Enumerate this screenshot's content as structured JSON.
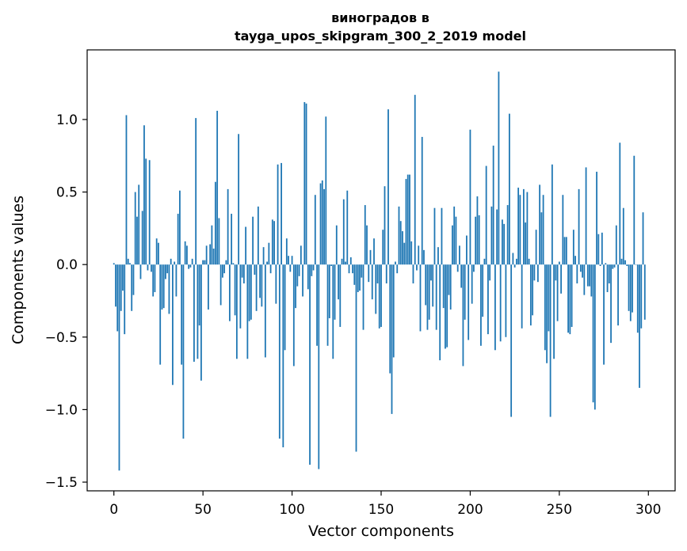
{
  "chart_data": {
    "type": "bar",
    "title_lines": [
      "виноградов в",
      "tayga_upos_skipgram_300_2_2019 model"
    ],
    "xlabel": "Vector components",
    "ylabel": "Components values",
    "x_range": [
      -15,
      315
    ],
    "ylim": [
      -1.56,
      1.48
    ],
    "xticks": [
      0,
      50,
      100,
      150,
      200,
      250,
      300
    ],
    "xtick_labels": [
      "0",
      "50",
      "100",
      "150",
      "200",
      "250",
      "300"
    ],
    "yticks": [
      -1.5,
      -1.0,
      -0.5,
      0.0,
      0.5,
      1.0
    ],
    "ytick_labels": [
      "−1.5",
      "−1.0",
      "−0.5",
      "0.0",
      "0.5",
      "1.0"
    ],
    "bar_color": "#1f77b4",
    "grid": false,
    "legend": "none",
    "values": [
      0.01,
      -0.29,
      -0.46,
      -1.42,
      -0.32,
      -0.18,
      -0.48,
      1.03,
      0.04,
      0.01,
      -0.32,
      -0.21,
      0.5,
      0.33,
      0.55,
      -0.1,
      0.37,
      0.96,
      0.73,
      -0.04,
      0.72,
      -0.05,
      -0.22,
      -0.19,
      0.18,
      0.15,
      -0.69,
      -0.31,
      -0.3,
      -0.1,
      -0.06,
      -0.34,
      0.04,
      -0.83,
      0.02,
      -0.22,
      0.35,
      0.51,
      -0.69,
      -1.2,
      0.16,
      0.13,
      -0.03,
      -0.02,
      0.04,
      -0.67,
      1.01,
      -0.65,
      -0.42,
      -0.8,
      0.03,
      0.03,
      0.13,
      -0.31,
      0.14,
      0.27,
      0.11,
      0.57,
      1.06,
      0.32,
      -0.28,
      -0.09,
      -0.06,
      0.03,
      0.52,
      -0.39,
      0.35,
      0.01,
      -0.35,
      -0.65,
      0.9,
      -0.44,
      -0.09,
      -0.13,
      0.26,
      -0.65,
      -0.39,
      -0.38,
      0.33,
      -0.07,
      -0.32,
      0.4,
      -0.23,
      -0.29,
      0.12,
      -0.64,
      0.02,
      0.15,
      -0.06,
      0.31,
      0.3,
      -0.27,
      0.69,
      -1.2,
      0.7,
      -1.26,
      -0.59,
      0.18,
      0.06,
      -0.05,
      0.06,
      -0.7,
      -0.3,
      -0.15,
      -0.08,
      0.13,
      -0.22,
      1.12,
      1.11,
      -0.17,
      -1.38,
      -0.08,
      -0.04,
      0.48,
      -0.56,
      -1.41,
      0.56,
      0.58,
      0.52,
      1.02,
      -0.56,
      -0.37,
      -0.01,
      -0.65,
      -0.38,
      0.27,
      -0.24,
      -0.43,
      0.04,
      0.45,
      0.02,
      0.51,
      -0.06,
      0.05,
      -0.06,
      -0.14,
      -1.29,
      -0.19,
      -0.18,
      -0.09,
      -0.45,
      0.41,
      0.27,
      -0.12,
      0.1,
      -0.24,
      0.18,
      -0.34,
      -0.13,
      -0.44,
      -0.43,
      0.24,
      0.54,
      -0.13,
      1.07,
      -0.75,
      -1.03,
      -0.64,
      0.02,
      -0.06,
      0.4,
      0.3,
      0.23,
      0.15,
      0.59,
      0.62,
      0.62,
      0.16,
      -0.13,
      1.17,
      -0.04,
      0.13,
      -0.46,
      0.88,
      0.1,
      -0.28,
      -0.45,
      -0.38,
      -0.11,
      -0.29,
      0.39,
      -0.45,
      0.12,
      -0.66,
      0.39,
      -0.3,
      -0.58,
      -0.57,
      -0.21,
      -0.31,
      0.27,
      0.4,
      0.33,
      -0.05,
      0.13,
      -0.16,
      -0.7,
      -0.38,
      0.2,
      -0.52,
      0.93,
      -0.27,
      -0.05,
      0.33,
      0.47,
      0.34,
      -0.56,
      -0.36,
      0.04,
      0.68,
      -0.48,
      -0.11,
      0.4,
      0.82,
      -0.59,
      0.38,
      1.33,
      -0.53,
      0.31,
      0.28,
      -0.5,
      0.41,
      1.04,
      -1.05,
      0.08,
      -0.02,
      0.04,
      0.53,
      0.48,
      -0.44,
      0.52,
      0.29,
      0.5,
      0.04,
      -0.42,
      -0.35,
      -0.11,
      0.24,
      -0.12,
      0.55,
      0.36,
      0.48,
      -0.59,
      -0.68,
      -0.46,
      -1.05,
      0.69,
      -0.65,
      -0.11,
      -0.39,
      0.02,
      -0.2,
      0.48,
      0.19,
      0.19,
      -0.47,
      -0.48,
      -0.43,
      0.24,
      0.06,
      -0.13,
      0.52,
      -0.05,
      -0.09,
      -0.21,
      0.67,
      -0.15,
      -0.15,
      -0.22,
      -0.95,
      -1.0,
      0.64,
      0.21,
      -0.01,
      0.22,
      -0.69,
      0.01,
      -0.19,
      -0.13,
      -0.54,
      -0.03,
      -0.02,
      0.27,
      -0.42,
      0.84,
      0.04,
      0.39,
      0.03,
      -0.01,
      -0.32,
      -0.39,
      -0.33,
      0.75,
      0.0,
      -0.47,
      -0.85,
      -0.44,
      0.36,
      -0.38
    ]
  }
}
